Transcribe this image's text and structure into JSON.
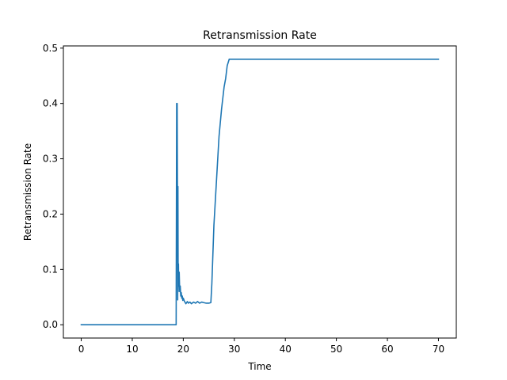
{
  "chart_data": {
    "type": "line",
    "title": "Retransmission Rate",
    "xlabel": "Time",
    "ylabel": "Retransmission Rate",
    "xlim": [
      -3.5,
      73.5
    ],
    "ylim": [
      -0.024,
      0.504
    ],
    "xticks": [
      0,
      10,
      20,
      30,
      40,
      50,
      60,
      70
    ],
    "yticks": [
      0.0,
      0.1,
      0.2,
      0.3,
      0.4,
      0.5
    ],
    "ytick_labels": [
      "0.0",
      "0.1",
      "0.2",
      "0.3",
      "0.4",
      "0.5"
    ],
    "grid": false,
    "legend": "none",
    "series": [
      {
        "color": "#1f77b4",
        "x": [
          0,
          18.6,
          18.7,
          18.75,
          18.8,
          18.85,
          18.9,
          18.95,
          19.0,
          19.05,
          19.1,
          19.2,
          19.3,
          19.4,
          19.5,
          19.6,
          19.7,
          19.8,
          19.9,
          20.0,
          20.2,
          20.5,
          20.8,
          21.0,
          21.3,
          21.6,
          22.0,
          22.4,
          22.8,
          23.2,
          23.6,
          24.0,
          24.5,
          25.0,
          25.4,
          25.6,
          26.0,
          26.5,
          27.0,
          27.5,
          28.0,
          28.3,
          28.6,
          29.0,
          30.0,
          40.0,
          50.0,
          60.0,
          70.0
        ],
        "y": [
          0.0,
          0.0,
          0.4,
          0.3,
          0.4,
          0.25,
          0.045,
          0.25,
          0.06,
          0.11,
          0.07,
          0.095,
          0.06,
          0.07,
          0.052,
          0.058,
          0.048,
          0.052,
          0.044,
          0.048,
          0.043,
          0.038,
          0.042,
          0.039,
          0.041,
          0.038,
          0.041,
          0.039,
          0.042,
          0.039,
          0.041,
          0.04,
          0.039,
          0.039,
          0.04,
          0.075,
          0.18,
          0.26,
          0.34,
          0.39,
          0.43,
          0.445,
          0.468,
          0.48,
          0.48,
          0.48,
          0.48,
          0.48,
          0.48
        ]
      }
    ]
  }
}
